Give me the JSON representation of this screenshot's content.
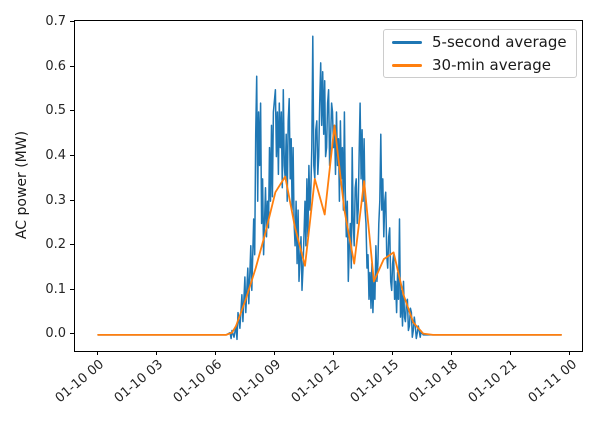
{
  "figure": {
    "ylabel": "AC power (MW)",
    "background_color": "#ffffff",
    "frame_color": "#000000"
  },
  "legend": {
    "position": "upper right",
    "entries": [
      {
        "label": "5-second average",
        "color": "#1f77b4"
      },
      {
        "label": "30-min average",
        "color": "#ff7f0e"
      }
    ]
  },
  "chart_data": {
    "type": "line",
    "title": "",
    "xlabel": "",
    "ylabel": "AC power (MW)",
    "x_unit": "hours after 01-10 00:00 (datetime axis)",
    "xlim_hours": [
      -1.17,
      24.56
    ],
    "ylim": [
      -0.036,
      0.704
    ],
    "grid": false,
    "legend_position": "upper right",
    "x_tick_hours": [
      0,
      3,
      6,
      9,
      12,
      15,
      18,
      21,
      24
    ],
    "x_tick_labels": [
      "01-10 00",
      "01-10 03",
      "01-10 06",
      "01-10 09",
      "01-10 12",
      "01-10 15",
      "01-10 18",
      "01-10 21",
      "01-11 00"
    ],
    "y_tick_values": [
      0.0,
      0.1,
      0.2,
      0.3,
      0.4,
      0.5,
      0.6,
      0.7
    ],
    "y_tick_labels": [
      "0.0",
      "0.1",
      "0.2",
      "0.3",
      "0.4",
      "0.5",
      "0.6",
      "0.7"
    ],
    "series": [
      {
        "name": "5-second average",
        "color": "#1f77b4",
        "points": [
          [
            0,
            0
          ],
          [
            3,
            0
          ],
          [
            6,
            0
          ],
          [
            6.5,
            0
          ],
          [
            6.7,
            0.005
          ],
          [
            6.75,
            -0.008
          ],
          [
            6.8,
            0.01
          ],
          [
            6.9,
            -0.005
          ],
          [
            7.0,
            0.02
          ],
          [
            7.05,
            -0.01
          ],
          [
            7.1,
            0.05
          ],
          [
            7.2,
            0.015
          ],
          [
            7.3,
            0.09
          ],
          [
            7.35,
            0.03
          ],
          [
            7.45,
            0.13
          ],
          [
            7.5,
            0.05
          ],
          [
            7.6,
            0.15
          ],
          [
            7.65,
            0.07
          ],
          [
            7.75,
            0.2
          ],
          [
            7.8,
            0.1
          ],
          [
            7.9,
            0.26
          ],
          [
            7.95,
            0.18
          ],
          [
            8.0,
            0.45
          ],
          [
            8.05,
            0.58
          ],
          [
            8.1,
            0.3
          ],
          [
            8.15,
            0.5
          ],
          [
            8.2,
            0.38
          ],
          [
            8.25,
            0.52
          ],
          [
            8.3,
            0.25
          ],
          [
            8.35,
            0.35
          ],
          [
            8.4,
            0.18
          ],
          [
            8.5,
            0.33
          ],
          [
            8.55,
            0.22
          ],
          [
            8.6,
            0.3
          ],
          [
            8.65,
            0.24
          ],
          [
            8.7,
            0.42
          ],
          [
            8.75,
            0.3
          ],
          [
            8.8,
            0.47
          ],
          [
            8.85,
            0.31
          ],
          [
            8.9,
            0.5
          ],
          [
            9.0,
            0.55
          ],
          [
            9.05,
            0.4
          ],
          [
            9.1,
            0.5
          ],
          [
            9.15,
            0.36
          ],
          [
            9.2,
            0.52
          ],
          [
            9.25,
            0.42
          ],
          [
            9.3,
            0.5
          ],
          [
            9.35,
            0.33
          ],
          [
            9.4,
            0.55
          ],
          [
            9.45,
            0.38
          ],
          [
            9.5,
            0.35
          ],
          [
            9.55,
            0.45
          ],
          [
            9.6,
            0.3
          ],
          [
            9.65,
            0.48
          ],
          [
            9.7,
            0.53
          ],
          [
            9.75,
            0.35
          ],
          [
            9.8,
            0.44
          ],
          [
            9.85,
            0.28
          ],
          [
            9.9,
            0.42
          ],
          [
            9.95,
            0.25
          ],
          [
            10.0,
            0.2
          ],
          [
            10.05,
            0.3
          ],
          [
            10.1,
            0.16
          ],
          [
            10.15,
            0.28
          ],
          [
            10.2,
            0.12
          ],
          [
            10.3,
            0.22
          ],
          [
            10.35,
            0.1
          ],
          [
            10.4,
            0.15
          ],
          [
            10.5,
            0.3
          ],
          [
            10.55,
            0.2
          ],
          [
            10.6,
            0.35
          ],
          [
            10.65,
            0.22
          ],
          [
            10.7,
            0.38
          ],
          [
            10.75,
            0.28
          ],
          [
            10.8,
            0.33
          ],
          [
            10.85,
            0.42
          ],
          [
            10.9,
            0.67
          ],
          [
            10.95,
            0.38
          ],
          [
            11.0,
            0.35
          ],
          [
            11.05,
            0.46
          ],
          [
            11.1,
            0.48
          ],
          [
            11.15,
            0.36
          ],
          [
            11.2,
            0.4
          ],
          [
            11.25,
            0.52
          ],
          [
            11.3,
            0.61
          ],
          [
            11.35,
            0.47
          ],
          [
            11.4,
            0.59
          ],
          [
            11.45,
            0.45
          ],
          [
            11.5,
            0.57
          ],
          [
            11.55,
            0.4
          ],
          [
            11.6,
            0.42
          ],
          [
            11.65,
            0.52
          ],
          [
            11.7,
            0.55
          ],
          [
            11.75,
            0.38
          ],
          [
            11.8,
            0.44
          ],
          [
            11.85,
            0.52
          ],
          [
            11.9,
            0.5
          ],
          [
            11.95,
            0.42
          ],
          [
            12.0,
            0.47
          ],
          [
            12.05,
            0.36
          ],
          [
            12.1,
            0.5
          ],
          [
            12.15,
            0.38
          ],
          [
            12.2,
            0.44
          ],
          [
            12.25,
            0.3
          ],
          [
            12.3,
            0.48
          ],
          [
            12.35,
            0.35
          ],
          [
            12.4,
            0.42
          ],
          [
            12.45,
            0.28
          ],
          [
            12.5,
            0.5
          ],
          [
            12.55,
            0.32
          ],
          [
            12.6,
            0.22
          ],
          [
            12.65,
            0.3
          ],
          [
            12.7,
            0.12
          ],
          [
            12.75,
            0.2
          ],
          [
            12.8,
            0.25
          ],
          [
            12.85,
            0.15
          ],
          [
            12.9,
            0.42
          ],
          [
            12.95,
            0.25
          ],
          [
            13.0,
            0.2
          ],
          [
            13.05,
            0.33
          ],
          [
            13.1,
            0.35
          ],
          [
            13.15,
            0.25
          ],
          [
            13.2,
            0.28
          ],
          [
            13.25,
            0.4
          ],
          [
            13.3,
            0.52
          ],
          [
            13.35,
            0.35
          ],
          [
            13.4,
            0.46
          ],
          [
            13.45,
            0.3
          ],
          [
            13.5,
            0.44
          ],
          [
            13.55,
            0.28
          ],
          [
            13.6,
            0.25
          ],
          [
            13.65,
            0.15
          ],
          [
            13.7,
            0.18
          ],
          [
            13.75,
            0.08
          ],
          [
            13.8,
            0.14
          ],
          [
            13.85,
            0.06
          ],
          [
            13.9,
            0.16
          ],
          [
            13.95,
            0.05
          ],
          [
            14.0,
            0.12
          ],
          [
            14.05,
            0.08
          ],
          [
            14.1,
            0.2
          ],
          [
            14.15,
            0.12
          ],
          [
            14.2,
            0.16
          ],
          [
            14.25,
            0.25
          ],
          [
            14.3,
            0.3
          ],
          [
            14.35,
            0.45
          ],
          [
            14.4,
            0.28
          ],
          [
            14.45,
            0.35
          ],
          [
            14.5,
            0.22
          ],
          [
            14.55,
            0.3
          ],
          [
            14.6,
            0.32
          ],
          [
            14.65,
            0.18
          ],
          [
            14.7,
            0.15
          ],
          [
            14.75,
            0.22
          ],
          [
            14.8,
            0.24
          ],
          [
            14.85,
            0.12
          ],
          [
            14.9,
            0.1
          ],
          [
            14.95,
            0.16
          ],
          [
            15.0,
            0.18
          ],
          [
            15.05,
            0.08
          ],
          [
            15.1,
            0.12
          ],
          [
            15.15,
            0.05
          ],
          [
            15.2,
            0.14
          ],
          [
            15.25,
            0.08
          ],
          [
            15.3,
            0.26
          ],
          [
            15.35,
            0.04
          ],
          [
            15.4,
            0.1
          ],
          [
            15.45,
            0.02
          ],
          [
            15.5,
            0.12
          ],
          [
            15.55,
            0.04
          ],
          [
            15.6,
            0.03
          ],
          [
            15.65,
            0.07
          ],
          [
            15.7,
            0.08
          ],
          [
            15.75,
            0.01
          ],
          [
            15.8,
            0.02
          ],
          [
            15.85,
            0.06
          ],
          [
            15.9,
            0.05
          ],
          [
            15.95,
            -0.005
          ],
          [
            16.0,
            0.01
          ],
          [
            16.05,
            0.04
          ],
          [
            16.1,
            0.02
          ],
          [
            16.15,
            -0.008
          ],
          [
            16.2,
            0.005
          ],
          [
            16.25,
            0.02
          ],
          [
            16.3,
            0.01
          ],
          [
            16.35,
            -0.005
          ],
          [
            16.4,
            0.008
          ],
          [
            16.5,
            0
          ],
          [
            17,
            0
          ],
          [
            20,
            0
          ],
          [
            23.5,
            0
          ]
        ]
      },
      {
        "name": "30-min average",
        "color": "#ff7f0e",
        "points": [
          [
            0,
            0
          ],
          [
            3,
            0
          ],
          [
            6,
            0
          ],
          [
            6.5,
            0
          ],
          [
            6.8,
            0.005
          ],
          [
            7.0,
            0.02
          ],
          [
            7.5,
            0.08
          ],
          [
            8.0,
            0.15
          ],
          [
            8.5,
            0.23
          ],
          [
            9.0,
            0.32
          ],
          [
            9.5,
            0.355
          ],
          [
            10.0,
            0.24
          ],
          [
            10.5,
            0.155
          ],
          [
            11.0,
            0.35
          ],
          [
            11.5,
            0.27
          ],
          [
            12.0,
            0.47
          ],
          [
            12.5,
            0.28
          ],
          [
            13.0,
            0.16
          ],
          [
            13.5,
            0.345
          ],
          [
            14.0,
            0.12
          ],
          [
            14.5,
            0.17
          ],
          [
            15.0,
            0.185
          ],
          [
            15.5,
            0.09
          ],
          [
            16.0,
            0.028
          ],
          [
            16.5,
            0.003
          ],
          [
            17.0,
            0
          ],
          [
            20,
            0
          ],
          [
            23.5,
            0
          ]
        ]
      }
    ]
  }
}
